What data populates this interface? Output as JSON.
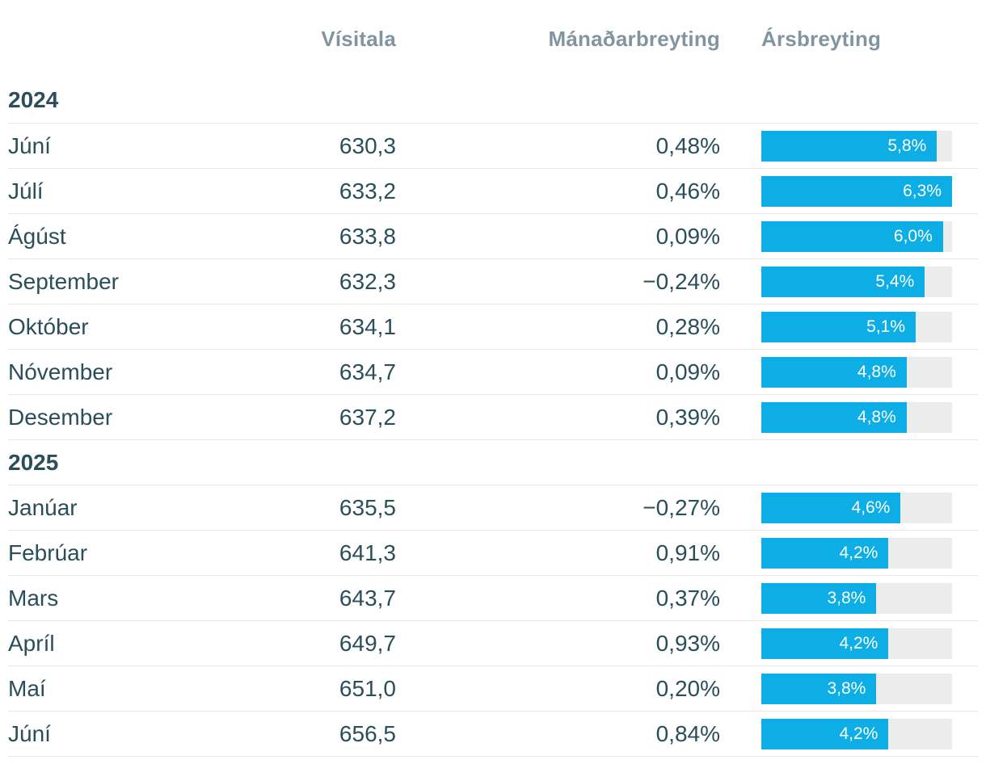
{
  "colors": {
    "bar_fill": "#0caee5",
    "bar_track": "#ececec",
    "text_dark": "#2a4e5a",
    "header_muted": "#8195a1",
    "divider": "#e8e8e8",
    "bar_label_text": "#ffffff"
  },
  "chart_data": {
    "type": "table",
    "columns": [
      "",
      "Vísitala",
      "Mánaðarbreyting",
      "Ársbreyting"
    ],
    "bar_column": "Ársbreyting",
    "bar_scale_max": 6.3,
    "groups": [
      {
        "year": "2024",
        "rows": [
          {
            "month": "Júní",
            "visitala": "630,3",
            "manadarbreyting": "0,48%",
            "arsbreyting_label": "5,8%",
            "arsbreyting": 5.8
          },
          {
            "month": "Júlí",
            "visitala": "633,2",
            "manadarbreyting": "0,46%",
            "arsbreyting_label": "6,3%",
            "arsbreyting": 6.3
          },
          {
            "month": "Ágúst",
            "visitala": "633,8",
            "manadarbreyting": "0,09%",
            "arsbreyting_label": "6,0%",
            "arsbreyting": 6.0
          },
          {
            "month": "September",
            "visitala": "632,3",
            "manadarbreyting": "−0,24%",
            "arsbreyting_label": "5,4%",
            "arsbreyting": 5.4
          },
          {
            "month": "Október",
            "visitala": "634,1",
            "manadarbreyting": "0,28%",
            "arsbreyting_label": "5,1%",
            "arsbreyting": 5.1
          },
          {
            "month": "Nóvember",
            "visitala": "634,7",
            "manadarbreyting": "0,09%",
            "arsbreyting_label": "4,8%",
            "arsbreyting": 4.8
          },
          {
            "month": "Desember",
            "visitala": "637,2",
            "manadarbreyting": "0,39%",
            "arsbreyting_label": "4,8%",
            "arsbreyting": 4.8
          }
        ]
      },
      {
        "year": "2025",
        "rows": [
          {
            "month": "Janúar",
            "visitala": "635,5",
            "manadarbreyting": "−0,27%",
            "arsbreyting_label": "4,6%",
            "arsbreyting": 4.6
          },
          {
            "month": "Febrúar",
            "visitala": "641,3",
            "manadarbreyting": "0,91%",
            "arsbreyting_label": "4,2%",
            "arsbreyting": 4.2
          },
          {
            "month": "Mars",
            "visitala": "643,7",
            "manadarbreyting": "0,37%",
            "arsbreyting_label": "3,8%",
            "arsbreyting": 3.8
          },
          {
            "month": "Apríl",
            "visitala": "649,7",
            "manadarbreyting": "0,93%",
            "arsbreyting_label": "4,2%",
            "arsbreyting": 4.2
          },
          {
            "month": "Maí",
            "visitala": "651,0",
            "manadarbreyting": "0,20%",
            "arsbreyting_label": "3,8%",
            "arsbreyting": 3.8
          },
          {
            "month": "Júní",
            "visitala": "656,5",
            "manadarbreyting": "0,84%",
            "arsbreyting_label": "4,2%",
            "arsbreyting": 4.2
          }
        ]
      }
    ]
  }
}
